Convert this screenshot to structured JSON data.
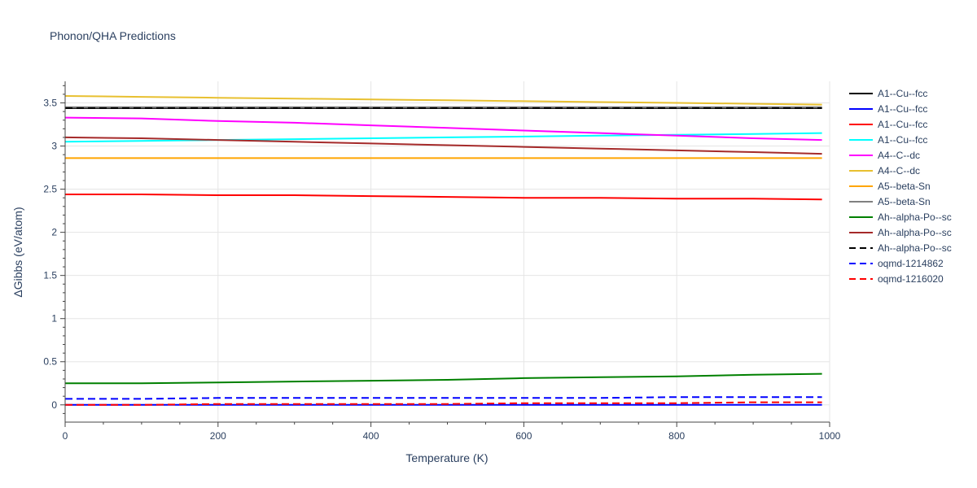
{
  "chart_data": {
    "type": "line",
    "title": "Phonon/QHA Predictions",
    "xlabel": "Temperature (K)",
    "ylabel": "ΔGibbs (eV/atom)",
    "xlim": [
      0,
      1000
    ],
    "ylim": [
      -0.2,
      3.75
    ],
    "xticks": [
      0,
      200,
      400,
      600,
      800,
      1000
    ],
    "yticks": [
      0,
      0.5,
      1,
      1.5,
      2,
      2.5,
      3,
      3.5
    ],
    "ytick_labels": [
      "0",
      "0.5",
      "1",
      "1.5",
      "2",
      "2.5",
      "3",
      "3.5"
    ],
    "grid": true,
    "legend_position": "right",
    "x": [
      0,
      100,
      200,
      300,
      400,
      500,
      600,
      700,
      800,
      900,
      990
    ],
    "series": [
      {
        "name": "A1--Cu--fcc",
        "color": "#000000",
        "dash": "solid",
        "values": [
          3.44,
          3.44,
          3.44,
          3.44,
          3.44,
          3.44,
          3.44,
          3.44,
          3.44,
          3.44,
          3.44
        ]
      },
      {
        "name": "A1--Cu--fcc",
        "color": "#0000ff",
        "dash": "solid",
        "values": [
          0.0,
          0.0,
          0.0,
          0.0,
          0.0,
          0.0,
          0.0,
          0.0,
          0.0,
          0.0,
          0.0
        ]
      },
      {
        "name": "A1--Cu--fcc",
        "color": "#ff0000",
        "dash": "solid",
        "values": [
          2.44,
          2.44,
          2.43,
          2.43,
          2.42,
          2.41,
          2.4,
          2.4,
          2.39,
          2.39,
          2.38
        ]
      },
      {
        "name": "A1--Cu--fcc",
        "color": "#00ffff",
        "dash": "solid",
        "values": [
          3.05,
          3.06,
          3.07,
          3.08,
          3.09,
          3.1,
          3.11,
          3.12,
          3.13,
          3.14,
          3.15
        ]
      },
      {
        "name": "A4--C--dc",
        "color": "#ff00ff",
        "dash": "solid",
        "values": [
          3.33,
          3.32,
          3.29,
          3.27,
          3.24,
          3.21,
          3.18,
          3.15,
          3.12,
          3.09,
          3.07
        ]
      },
      {
        "name": "A4--C--dc",
        "color": "#e8c030",
        "dash": "solid",
        "values": [
          3.58,
          3.57,
          3.56,
          3.55,
          3.54,
          3.53,
          3.52,
          3.51,
          3.5,
          3.49,
          3.48
        ]
      },
      {
        "name": "A5--beta-Sn",
        "color": "#ffa500",
        "dash": "solid",
        "values": [
          2.86,
          2.86,
          2.86,
          2.86,
          2.86,
          2.86,
          2.86,
          2.86,
          2.86,
          2.86,
          2.86
        ]
      },
      {
        "name": "A5--beta-Sn",
        "color": "#808080",
        "dash": "solid",
        "values": [
          3.45,
          3.45,
          3.45,
          3.45,
          3.45,
          3.45,
          3.45,
          3.45,
          3.45,
          3.45,
          3.45
        ]
      },
      {
        "name": "Ah--alpha-Po--sc",
        "color": "#008000",
        "dash": "solid",
        "values": [
          0.25,
          0.25,
          0.26,
          0.27,
          0.28,
          0.29,
          0.31,
          0.32,
          0.33,
          0.35,
          0.36
        ]
      },
      {
        "name": "Ah--alpha-Po--sc",
        "color": "#a52a2a",
        "dash": "solid",
        "values": [
          3.1,
          3.09,
          3.07,
          3.05,
          3.03,
          3.01,
          2.99,
          2.97,
          2.95,
          2.93,
          2.91
        ]
      },
      {
        "name": "Ah--alpha-Po--sc",
        "color": "#000000",
        "dash": "dash",
        "values": [
          3.44,
          3.44,
          3.44,
          3.44,
          3.44,
          3.44,
          3.44,
          3.44,
          3.44,
          3.44,
          3.44
        ]
      },
      {
        "name": "oqmd-1214862",
        "color": "#0000ff",
        "dash": "dash",
        "values": [
          0.07,
          0.07,
          0.08,
          0.08,
          0.08,
          0.08,
          0.08,
          0.08,
          0.09,
          0.09,
          0.09
        ]
      },
      {
        "name": "oqmd-1216020",
        "color": "#ff0000",
        "dash": "dash",
        "values": [
          0.0,
          0.0,
          0.01,
          0.01,
          0.01,
          0.01,
          0.02,
          0.02,
          0.02,
          0.03,
          0.03
        ]
      }
    ]
  }
}
